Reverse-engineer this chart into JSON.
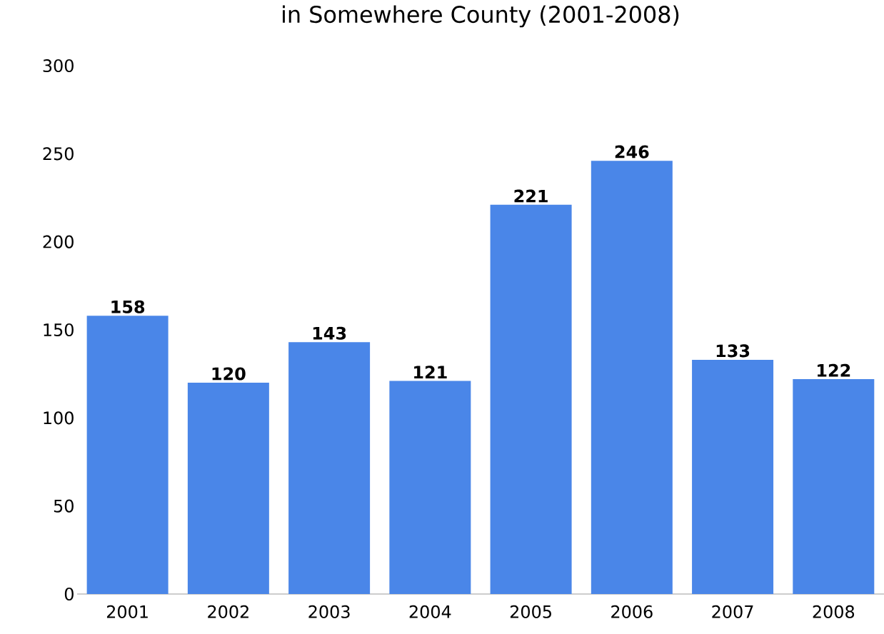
{
  "chart_data": {
    "type": "bar",
    "title": "in Somewhere County (2001-2008)",
    "categories": [
      "2001",
      "2002",
      "2003",
      "2004",
      "2005",
      "2006",
      "2007",
      "2008"
    ],
    "values": [
      158,
      120,
      143,
      121,
      221,
      246,
      133,
      122
    ],
    "color": "#4a86e8",
    "ylim": [
      0,
      300
    ],
    "yticks": [
      0,
      50,
      100,
      150,
      200,
      250,
      300
    ],
    "data_labels": true
  }
}
